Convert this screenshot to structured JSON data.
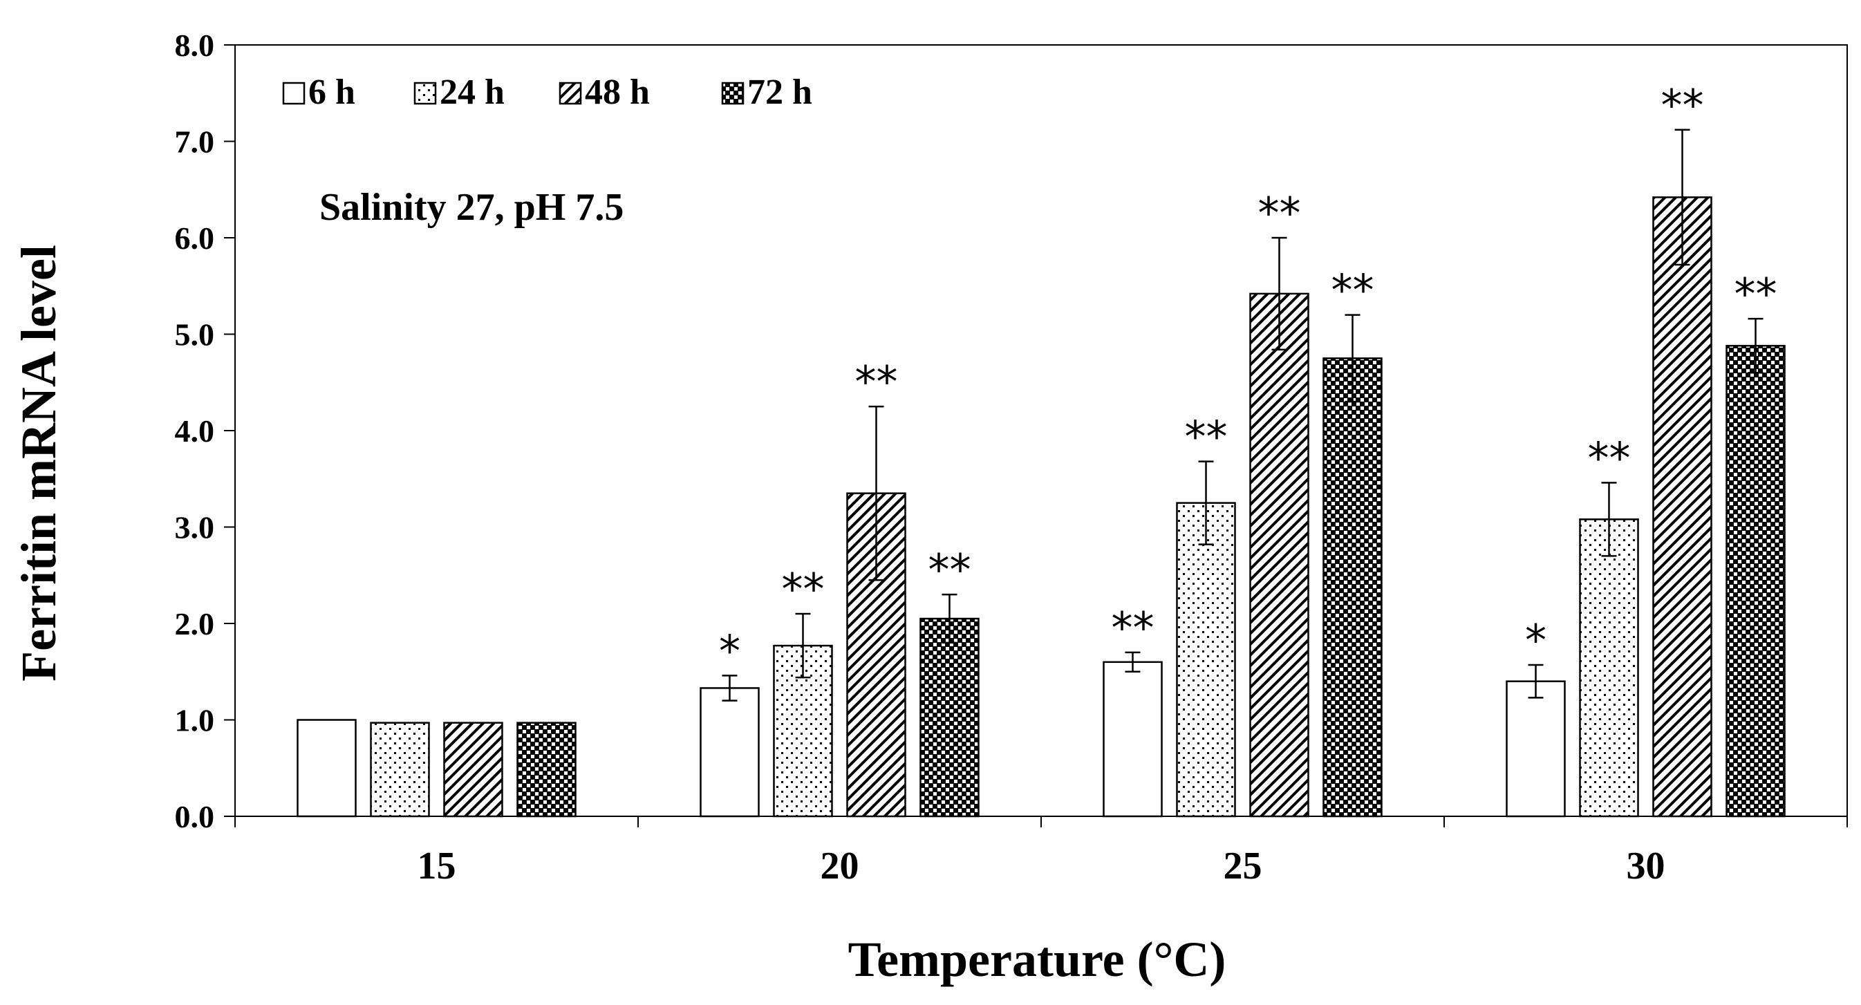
{
  "chart_data": {
    "type": "bar",
    "ylabel": "Ferritin  mRNA  level",
    "xlabel": "Temperature (°C)",
    "ylim": [
      0,
      8
    ],
    "yticks": [
      "0.0",
      "1.0",
      "2.0",
      "3.0",
      "4.0",
      "5.0",
      "6.0",
      "7.0",
      "8.0"
    ],
    "annotation": "Salinity  27, pH  7.5",
    "categories": [
      "15",
      "20",
      "25",
      "30"
    ],
    "series": [
      {
        "name": "6 h",
        "pattern": "empty",
        "values": [
          1.0,
          1.33,
          1.6,
          1.4
        ],
        "errors": [
          0.0,
          0.13,
          0.1,
          0.17
        ],
        "sig": [
          "",
          "*",
          "**",
          "*"
        ]
      },
      {
        "name": "24 h",
        "pattern": "dots",
        "values": [
          0.97,
          1.77,
          3.25,
          3.08
        ],
        "errors": [
          0.02,
          0.33,
          0.43,
          0.38
        ],
        "sig": [
          "",
          "**",
          "**",
          "**"
        ]
      },
      {
        "name": "48 h",
        "pattern": "diagonal",
        "values": [
          0.97,
          3.35,
          5.42,
          6.42
        ],
        "errors": [
          0.02,
          0.9,
          0.58,
          0.7
        ],
        "sig": [
          "",
          "**",
          "**",
          "**"
        ]
      },
      {
        "name": "72 h",
        "pattern": "checker",
        "values": [
          0.97,
          2.05,
          4.75,
          4.88
        ],
        "errors": [
          0.02,
          0.25,
          0.45,
          0.28
        ],
        "sig": [
          "",
          "**",
          "**",
          "**"
        ]
      }
    ]
  },
  "colors": {
    "ink": "#000000",
    "background": "#ffffff"
  }
}
